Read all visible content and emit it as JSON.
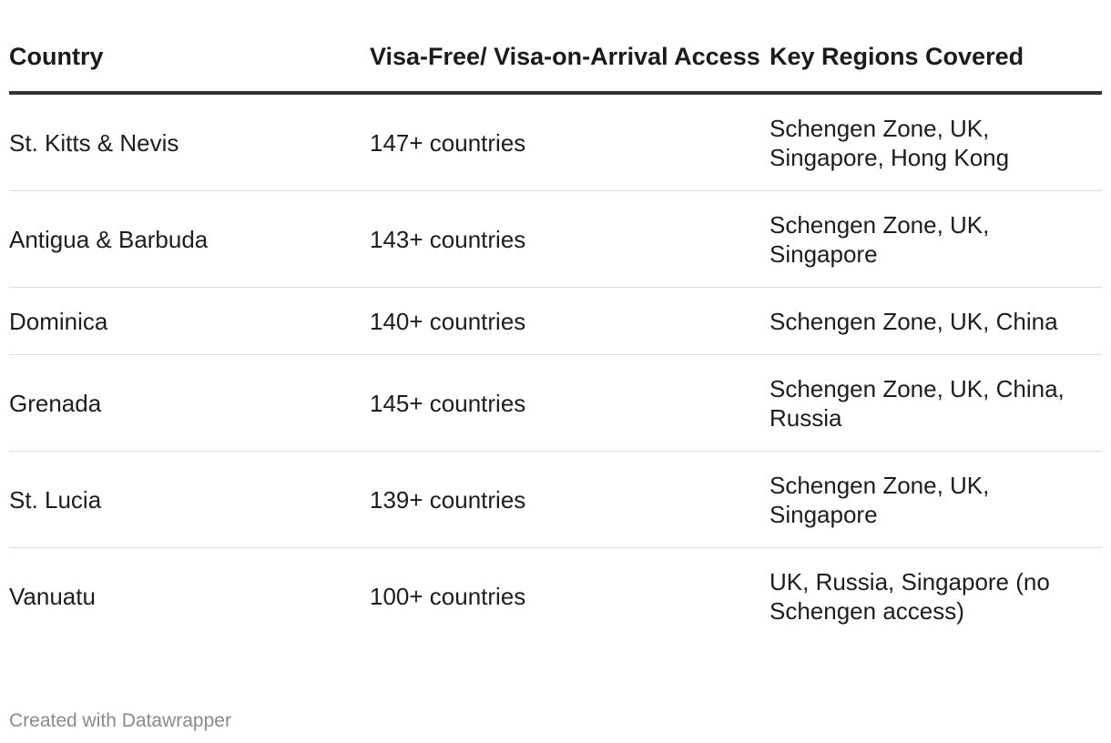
{
  "chart_data": {
    "type": "table",
    "columns": [
      "Country",
      "Visa-Free/ Visa-on-Arrival Access",
      "Key Regions Covered"
    ],
    "rows": [
      [
        "St. Kitts & Nevis",
        "147+ countries",
        "Schengen Zone, UK, Singapore, Hong Kong"
      ],
      [
        "Antigua & Barbuda",
        "143+ countries",
        "Schengen Zone, UK, Singapore"
      ],
      [
        "Dominica",
        "140+ countries",
        "Schengen Zone, UK, China"
      ],
      [
        "Grenada",
        "145+ countries",
        "Schengen Zone, UK, China, Russia"
      ],
      [
        "St. Lucia",
        "139+ countries",
        "Schengen Zone, UK, Singapore"
      ],
      [
        "Vanuatu",
        "100+ countries",
        "UK, Russia, Singapore (no Schengen access)"
      ]
    ]
  },
  "footer": {
    "credit": "Created with Datawrapper"
  }
}
